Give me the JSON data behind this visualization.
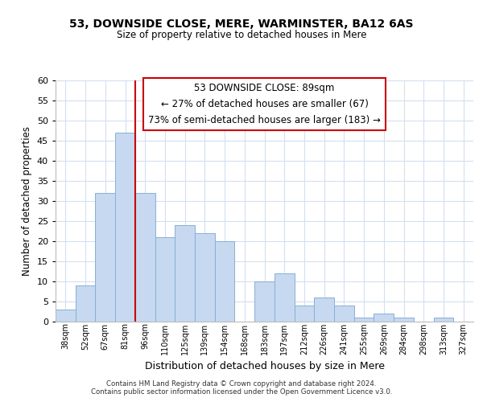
{
  "title": "53, DOWNSIDE CLOSE, MERE, WARMINSTER, BA12 6AS",
  "subtitle": "Size of property relative to detached houses in Mere",
  "xlabel": "Distribution of detached houses by size in Mere",
  "ylabel": "Number of detached properties",
  "bin_labels": [
    "38sqm",
    "52sqm",
    "67sqm",
    "81sqm",
    "96sqm",
    "110sqm",
    "125sqm",
    "139sqm",
    "154sqm",
    "168sqm",
    "183sqm",
    "197sqm",
    "212sqm",
    "226sqm",
    "241sqm",
    "255sqm",
    "269sqm",
    "284sqm",
    "298sqm",
    "313sqm",
    "327sqm"
  ],
  "bar_heights": [
    3,
    9,
    32,
    47,
    32,
    21,
    24,
    22,
    20,
    0,
    10,
    12,
    4,
    6,
    4,
    1,
    2,
    1,
    0,
    1,
    0
  ],
  "bar_color": "#c6d9f0",
  "bar_edge_color": "#8aafd4",
  "vline_color": "#cc0000",
  "ylim": [
    0,
    60
  ],
  "yticks": [
    0,
    5,
    10,
    15,
    20,
    25,
    30,
    35,
    40,
    45,
    50,
    55,
    60
  ],
  "annotation_line1": "53 DOWNSIDE CLOSE: 89sqm",
  "annotation_line2": "← 27% of detached houses are smaller (67)",
  "annotation_line3": "73% of semi-detached houses are larger (183) →",
  "annotation_box_color": "#ffffff",
  "annotation_box_edge_color": "#cc0000",
  "footer_text": "Contains HM Land Registry data © Crown copyright and database right 2024.\nContains public sector information licensed under the Open Government Licence v3.0.",
  "background_color": "#ffffff",
  "grid_color": "#d4dff0"
}
